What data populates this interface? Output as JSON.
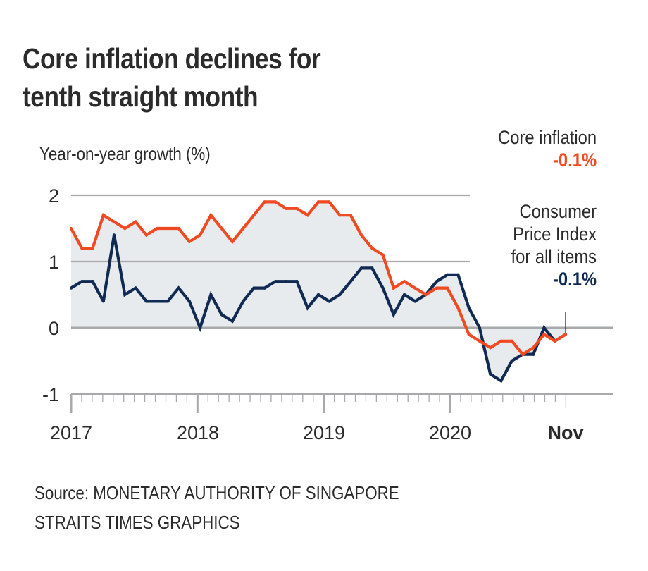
{
  "chart_data": {
    "type": "line",
    "title": "Core inflation declines for tenth straight month",
    "ylabel": "Year-on-year growth (%)",
    "xlabel": "",
    "ylim": [
      -1,
      2
    ],
    "yticks": [
      "2",
      "1",
      "0",
      "-1"
    ],
    "ytick_values": [
      2,
      1,
      0,
      -1
    ],
    "grid": true,
    "x_start": "Jan 2017",
    "x_end": "Nov 2020",
    "xticks": [
      {
        "label": "2017",
        "month_index": 0,
        "bold": false
      },
      {
        "label": "2018",
        "month_index": 12,
        "bold": false
      },
      {
        "label": "2019",
        "month_index": 24,
        "bold": false
      },
      {
        "label": "2020",
        "month_index": 36,
        "bold": false
      },
      {
        "label": "Nov",
        "month_index": 46,
        "bold": true
      }
    ],
    "x": [
      "Jan 2017",
      "Feb 2017",
      "Mar 2017",
      "Apr 2017",
      "May 2017",
      "Jun 2017",
      "Jul 2017",
      "Aug 2017",
      "Sep 2017",
      "Oct 2017",
      "Nov 2017",
      "Dec 2017",
      "Jan 2018",
      "Feb 2018",
      "Mar 2018",
      "Apr 2018",
      "May 2018",
      "Jun 2018",
      "Jul 2018",
      "Aug 2018",
      "Sep 2018",
      "Oct 2018",
      "Nov 2018",
      "Dec 2018",
      "Jan 2019",
      "Feb 2019",
      "Mar 2019",
      "Apr 2019",
      "May 2019",
      "Jun 2019",
      "Jul 2019",
      "Aug 2019",
      "Sep 2019",
      "Oct 2019",
      "Nov 2019",
      "Dec 2019",
      "Jan 2020",
      "Feb 2020",
      "Mar 2020",
      "Apr 2020",
      "May 2020",
      "Jun 2020",
      "Jul 2020",
      "Aug 2020",
      "Sep 2020",
      "Oct 2020",
      "Nov 2020"
    ],
    "series": [
      {
        "name": "Core inflation",
        "color": "#f04a23",
        "latest_label": "-0.1%",
        "values": [
          1.5,
          1.2,
          1.2,
          1.7,
          1.6,
          1.5,
          1.6,
          1.4,
          1.5,
          1.5,
          1.5,
          1.3,
          1.4,
          1.7,
          1.5,
          1.3,
          1.5,
          1.7,
          1.9,
          1.9,
          1.8,
          1.8,
          1.7,
          1.9,
          1.9,
          1.7,
          1.7,
          1.4,
          1.2,
          1.1,
          0.6,
          0.7,
          0.6,
          0.5,
          0.6,
          0.6,
          0.3,
          -0.1,
          -0.2,
          -0.3,
          -0.2,
          -0.2,
          -0.4,
          -0.3,
          -0.1,
          -0.2,
          -0.1
        ]
      },
      {
        "name": "Consumer Price Index for all items",
        "color": "#112a52",
        "latest_label": "-0.1%",
        "values": [
          0.6,
          0.7,
          0.7,
          0.4,
          1.4,
          0.5,
          0.6,
          0.4,
          0.4,
          0.4,
          0.6,
          0.4,
          0.0,
          0.5,
          0.2,
          0.1,
          0.4,
          0.6,
          0.6,
          0.7,
          0.7,
          0.7,
          0.3,
          0.5,
          0.4,
          0.5,
          0.7,
          0.9,
          0.9,
          0.6,
          0.2,
          0.5,
          0.4,
          0.5,
          0.7,
          0.8,
          0.8,
          0.3,
          0.0,
          -0.7,
          -0.8,
          -0.5,
          -0.4,
          -0.4,
          0.0,
          -0.2,
          -0.1
        ]
      }
    ],
    "fill_color": "#e8ebee",
    "legend": "annotations-right"
  },
  "header": {
    "title_line1": "Core inflation declines for",
    "title_line2": "tenth straight month"
  },
  "annotations": {
    "core": {
      "label": "Core inflation",
      "value": "-0.1%"
    },
    "cpi": {
      "label_line1": "Consumer",
      "label_line2": "Price Index",
      "label_line3": "for all items",
      "value": "-0.1%"
    }
  },
  "footer": {
    "source": "Source: MONETARY AUTHORITY OF SINGAPORE",
    "credit": "STRAITS TIMES GRAPHICS"
  }
}
